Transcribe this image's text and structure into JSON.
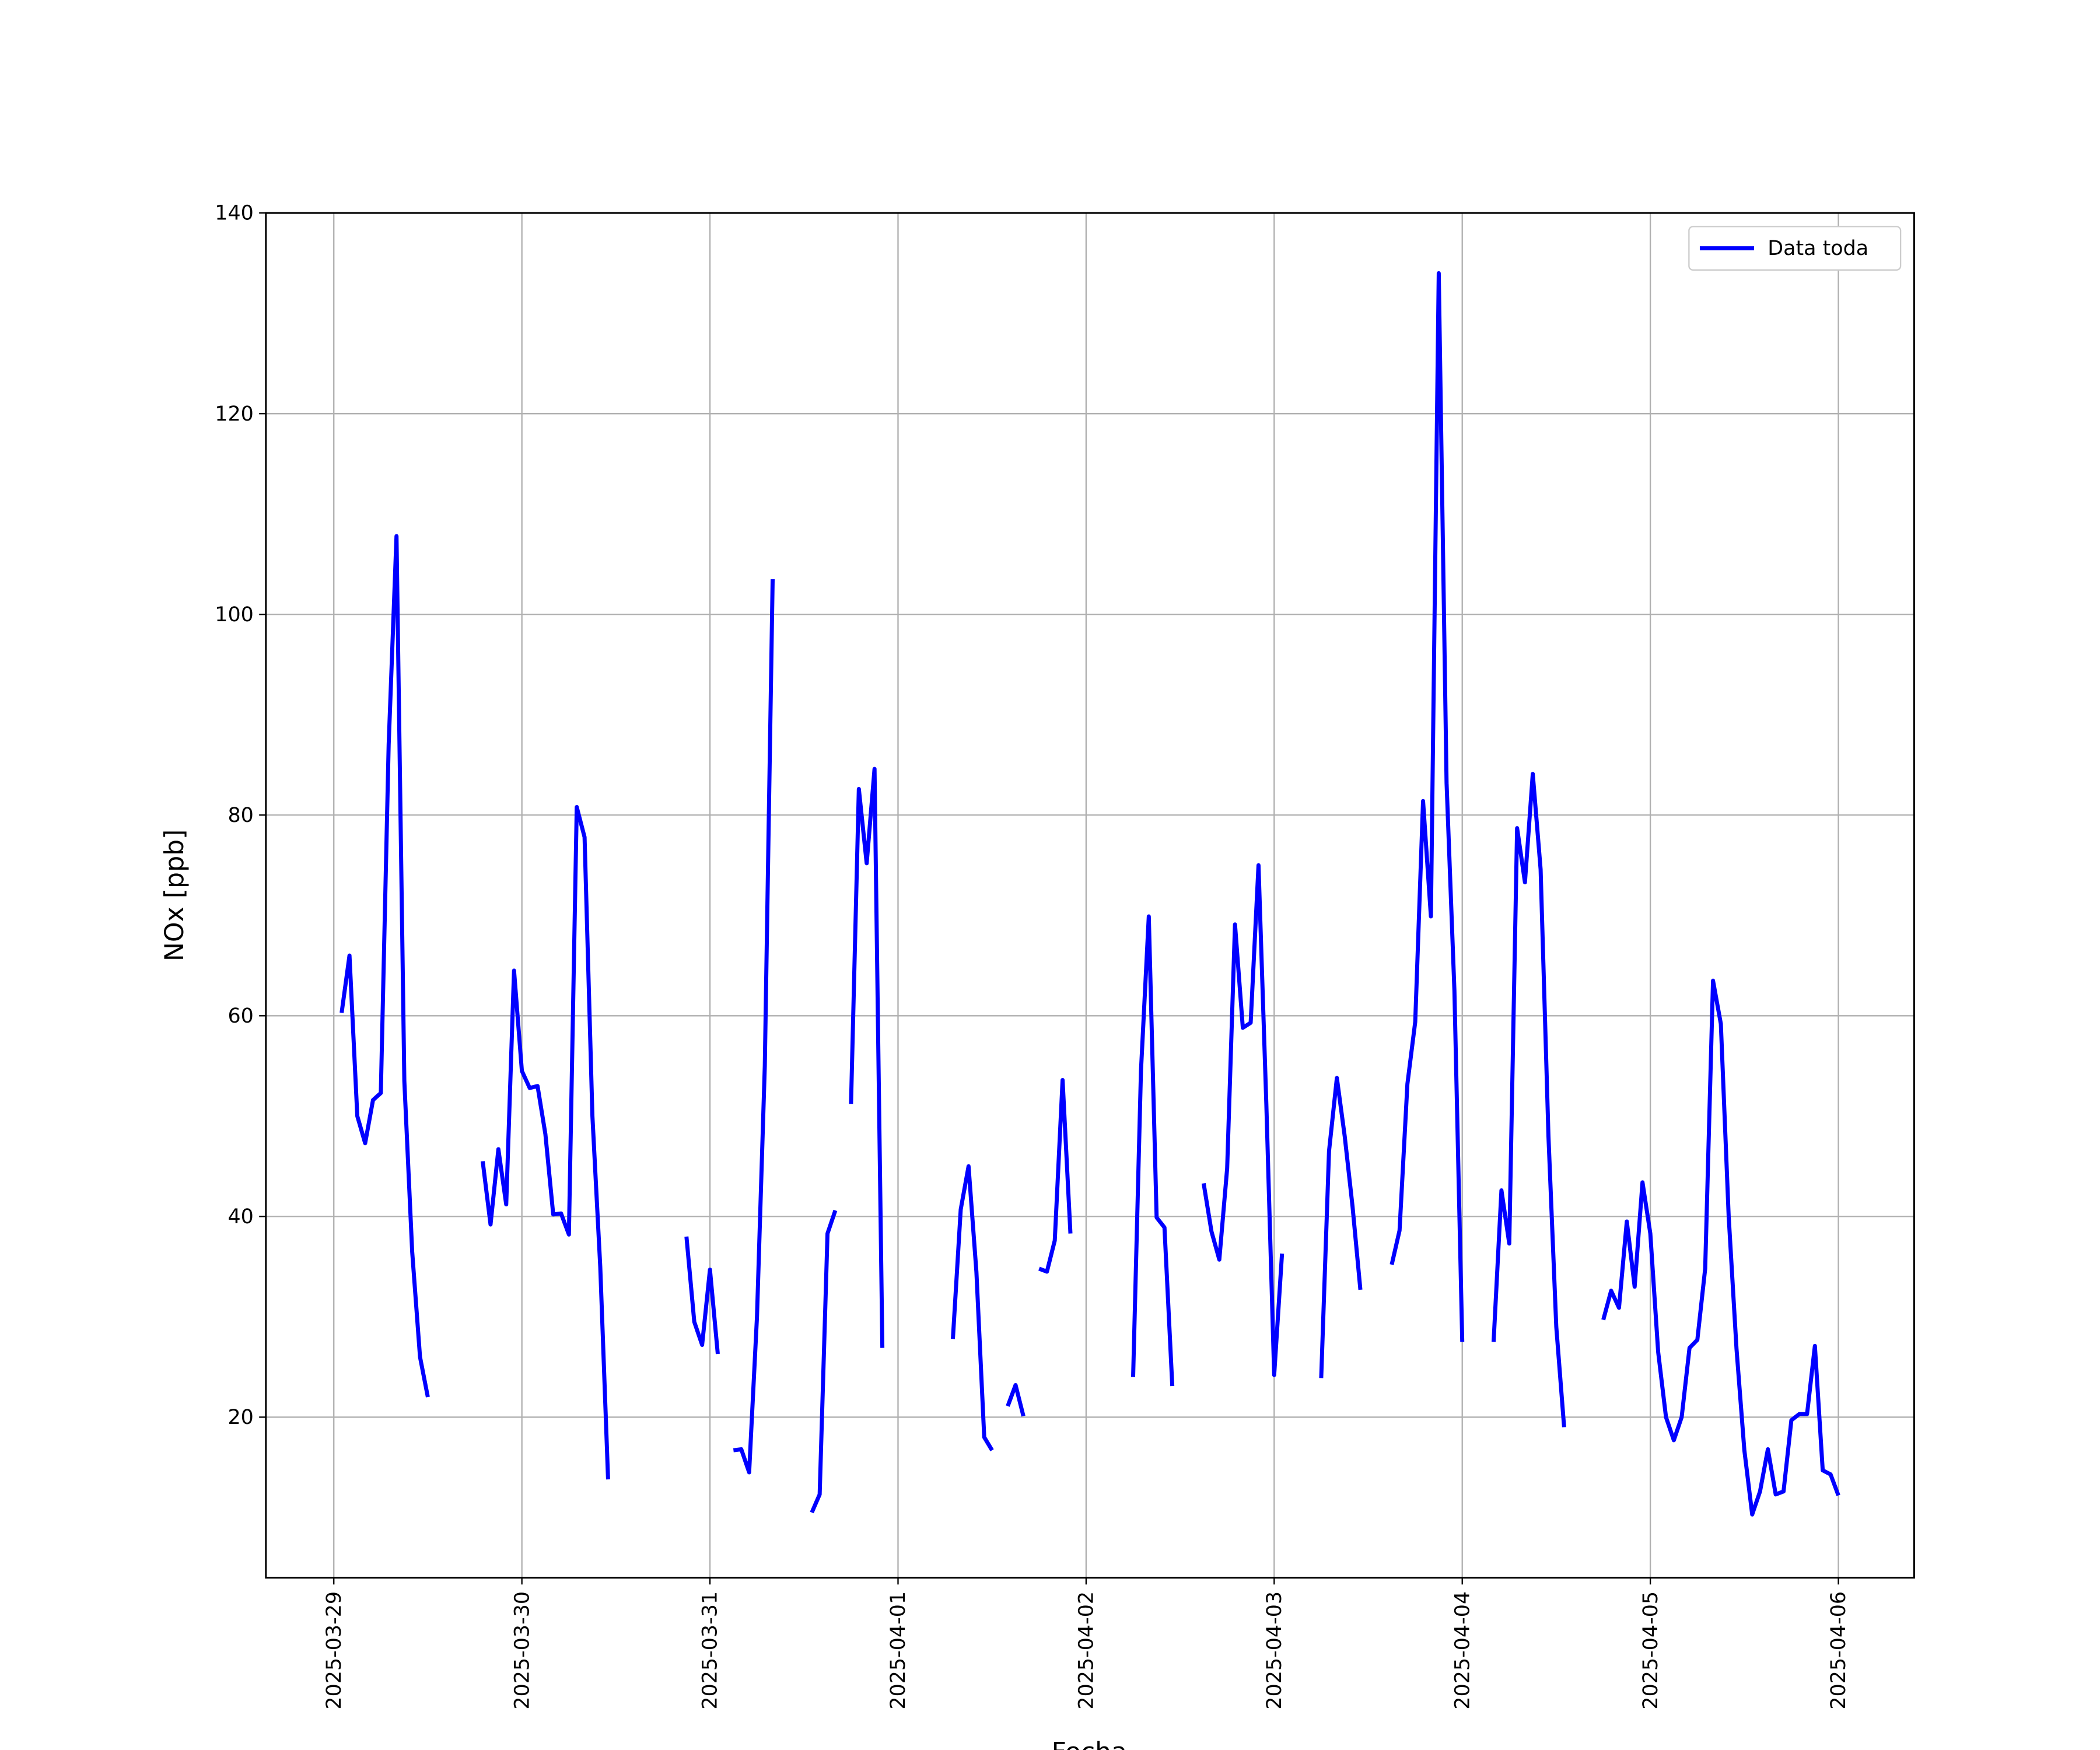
{
  "chart_data": {
    "type": "line",
    "xlabel": "Fecha",
    "ylabel": "NOx [ppb]",
    "x": [
      "2025-03-29 01:00",
      "2025-03-29 02:00",
      "2025-03-29 03:00",
      "2025-03-29 04:00",
      "2025-03-29 05:00",
      "2025-03-29 06:00",
      "2025-03-29 07:00",
      "2025-03-29 08:00",
      "2025-03-29 09:00",
      "2025-03-29 10:00",
      "2025-03-29 11:00",
      "2025-03-29 12:00",
      "2025-03-29 13:00",
      "2025-03-29 14:00",
      "2025-03-29 15:00",
      "2025-03-29 16:00",
      "2025-03-29 17:00",
      "2025-03-29 18:00",
      "2025-03-29 19:00",
      "2025-03-29 20:00",
      "2025-03-29 21:00",
      "2025-03-29 22:00",
      "2025-03-29 23:00",
      "2025-03-30 00:00",
      "2025-03-30 01:00",
      "2025-03-30 02:00",
      "2025-03-30 03:00",
      "2025-03-30 04:00",
      "2025-03-30 05:00",
      "2025-03-30 06:00",
      "2025-03-30 07:00",
      "2025-03-30 08:00",
      "2025-03-30 09:00",
      "2025-03-30 10:00",
      "2025-03-30 11:00",
      "2025-03-30 12:00",
      "2025-03-30 13:00",
      "2025-03-30 14:00",
      "2025-03-30 15:00",
      "2025-03-30 16:00",
      "2025-03-30 17:00",
      "2025-03-30 18:00",
      "2025-03-30 19:00",
      "2025-03-30 20:00",
      "2025-03-30 21:00",
      "2025-03-30 22:00",
      "2025-03-30 23:00",
      "2025-03-31 00:00",
      "2025-03-31 01:00",
      "2025-03-31 02:00",
      "2025-03-31 03:00",
      "2025-03-31 04:00",
      "2025-03-31 05:00",
      "2025-03-31 06:00",
      "2025-03-31 07:00",
      "2025-03-31 08:00",
      "2025-03-31 09:00",
      "2025-03-31 10:00",
      "2025-03-31 11:00",
      "2025-03-31 12:00",
      "2025-03-31 13:00",
      "2025-03-31 14:00",
      "2025-03-31 15:00",
      "2025-03-31 16:00",
      "2025-03-31 17:00",
      "2025-03-31 18:00",
      "2025-03-31 19:00",
      "2025-03-31 20:00",
      "2025-03-31 21:00",
      "2025-03-31 22:00",
      "2025-03-31 23:00",
      "2025-04-01 00:00",
      "2025-04-01 01:00",
      "2025-04-01 02:00",
      "2025-04-01 03:00",
      "2025-04-01 04:00",
      "2025-04-01 05:00",
      "2025-04-01 06:00",
      "2025-04-01 07:00",
      "2025-04-01 08:00",
      "2025-04-01 09:00",
      "2025-04-01 10:00",
      "2025-04-01 11:00",
      "2025-04-01 12:00",
      "2025-04-01 13:00",
      "2025-04-01 14:00",
      "2025-04-01 15:00",
      "2025-04-01 16:00",
      "2025-04-01 17:00",
      "2025-04-01 18:00",
      "2025-04-01 19:00",
      "2025-04-01 20:00",
      "2025-04-01 21:00",
      "2025-04-01 22:00",
      "2025-04-01 23:00",
      "2025-04-02 00:00",
      "2025-04-02 01:00",
      "2025-04-02 02:00",
      "2025-04-02 03:00",
      "2025-04-02 04:00",
      "2025-04-02 05:00",
      "2025-04-02 06:00",
      "2025-04-02 07:00",
      "2025-04-02 08:00",
      "2025-04-02 09:00",
      "2025-04-02 10:00",
      "2025-04-02 11:00",
      "2025-04-02 12:00",
      "2025-04-02 13:00",
      "2025-04-02 14:00",
      "2025-04-02 15:00",
      "2025-04-02 16:00",
      "2025-04-02 17:00",
      "2025-04-02 18:00",
      "2025-04-02 19:00",
      "2025-04-02 20:00",
      "2025-04-02 21:00",
      "2025-04-02 22:00",
      "2025-04-02 23:00",
      "2025-04-03 00:00",
      "2025-04-03 01:00",
      "2025-04-03 02:00",
      "2025-04-03 03:00",
      "2025-04-03 04:00",
      "2025-04-03 05:00",
      "2025-04-03 06:00",
      "2025-04-03 07:00",
      "2025-04-03 08:00",
      "2025-04-03 09:00",
      "2025-04-03 10:00",
      "2025-04-03 11:00",
      "2025-04-03 12:00",
      "2025-04-03 13:00",
      "2025-04-03 14:00",
      "2025-04-03 15:00",
      "2025-04-03 16:00",
      "2025-04-03 17:00",
      "2025-04-03 18:00",
      "2025-04-03 19:00",
      "2025-04-03 20:00",
      "2025-04-03 21:00",
      "2025-04-03 22:00",
      "2025-04-03 23:00",
      "2025-04-04 00:00",
      "2025-04-04 01:00",
      "2025-04-04 02:00",
      "2025-04-04 03:00",
      "2025-04-04 04:00",
      "2025-04-04 05:00",
      "2025-04-04 06:00",
      "2025-04-04 07:00",
      "2025-04-04 08:00",
      "2025-04-04 09:00",
      "2025-04-04 10:00",
      "2025-04-04 11:00",
      "2025-04-04 12:00",
      "2025-04-04 13:00",
      "2025-04-04 14:00",
      "2025-04-04 15:00",
      "2025-04-04 16:00",
      "2025-04-04 17:00",
      "2025-04-04 18:00",
      "2025-04-04 19:00",
      "2025-04-04 20:00",
      "2025-04-04 21:00",
      "2025-04-04 22:00",
      "2025-04-04 23:00",
      "2025-04-05 00:00",
      "2025-04-05 01:00",
      "2025-04-05 02:00",
      "2025-04-05 03:00",
      "2025-04-05 04:00",
      "2025-04-05 05:00",
      "2025-04-05 06:00",
      "2025-04-05 07:00",
      "2025-04-05 08:00",
      "2025-04-05 09:00",
      "2025-04-05 10:00",
      "2025-04-05 11:00",
      "2025-04-05 12:00",
      "2025-04-05 13:00",
      "2025-04-05 14:00",
      "2025-04-05 15:00",
      "2025-04-05 16:00",
      "2025-04-05 17:00",
      "2025-04-05 18:00",
      "2025-04-05 19:00",
      "2025-04-05 20:00",
      "2025-04-05 21:00",
      "2025-04-05 22:00",
      "2025-04-05 23:00",
      "2025-04-06 00:00"
    ],
    "series": [
      {
        "name": "Data toda",
        "color": "#0000ff",
        "values": [
          60.3,
          66,
          50,
          47.3,
          51.6,
          52.3,
          87,
          107.8,
          53.5,
          36.5,
          26,
          22,
          null,
          null,
          null,
          null,
          null,
          null,
          45.5,
          39.2,
          46.7,
          41.2,
          64.5,
          54.5,
          52.8,
          53,
          48.2,
          40.2,
          40.3,
          38.2,
          80.8,
          77.8,
          50,
          35,
          13.8,
          null,
          null,
          null,
          null,
          null,
          null,
          null,
          null,
          null,
          38,
          29.5,
          27.2,
          34.7,
          26.3,
          null,
          16.7,
          16.8,
          14.5,
          30,
          55,
          103.5,
          null,
          null,
          null,
          null,
          10.5,
          12.3,
          38.3,
          40.6,
          null,
          51.2,
          82.6,
          75.2,
          84.6,
          26.9,
          null,
          null,
          null,
          null,
          null,
          null,
          null,
          null,
          27.8,
          40.7,
          45,
          34.5,
          18,
          16.7,
          null,
          21.1,
          23.2,
          20.1,
          null,
          34.8,
          34.5,
          37.6,
          53.6,
          38.3,
          null,
          null,
          null,
          null,
          null,
          null,
          null,
          24,
          54.5,
          69.9,
          39.9,
          38.9,
          23.1,
          null,
          null,
          null,
          43.3,
          38.5,
          35.7,
          44.8,
          69.1,
          58.8,
          59.3,
          75,
          51.2,
          24.2,
          36.3,
          null,
          null,
          null,
          null,
          23.9,
          46.5,
          53.8,
          48,
          41,
          32.7,
          null,
          null,
          null,
          35.2,
          38.6,
          53.2,
          59.4,
          81.4,
          69.9,
          134,
          83.2,
          62.5,
          27.5,
          null,
          null,
          null,
          27.5,
          42.6,
          37.3,
          78.7,
          73.3,
          84.1,
          74.6,
          48,
          29,
          19,
          null,
          null,
          null,
          null,
          29.7,
          32.6,
          30.9,
          39.5,
          33,
          43.4,
          38.3,
          26.5,
          20,
          17.7,
          20,
          26.9,
          27.7,
          34.8,
          63.5,
          59.2,
          40,
          26.8,
          16.7,
          10.3,
          12.6,
          16.8,
          12.3,
          12.6,
          19.7,
          20.3,
          20.3,
          27.1,
          14.7,
          14.3,
          12.2
        ]
      }
    ],
    "xlim": [
      "2025-03-28 15:20",
      "2025-04-06 09:40"
    ],
    "xticks": [
      "2025-03-29",
      "2025-03-30",
      "2025-03-31",
      "2025-04-01",
      "2025-04-02",
      "2025-04-03",
      "2025-04-04",
      "2025-04-05",
      "2025-04-06"
    ],
    "ylim": [
      4,
      140
    ],
    "yticks": [
      20,
      40,
      60,
      80,
      100,
      120,
      140
    ],
    "grid": true,
    "legend": "upper right"
  }
}
